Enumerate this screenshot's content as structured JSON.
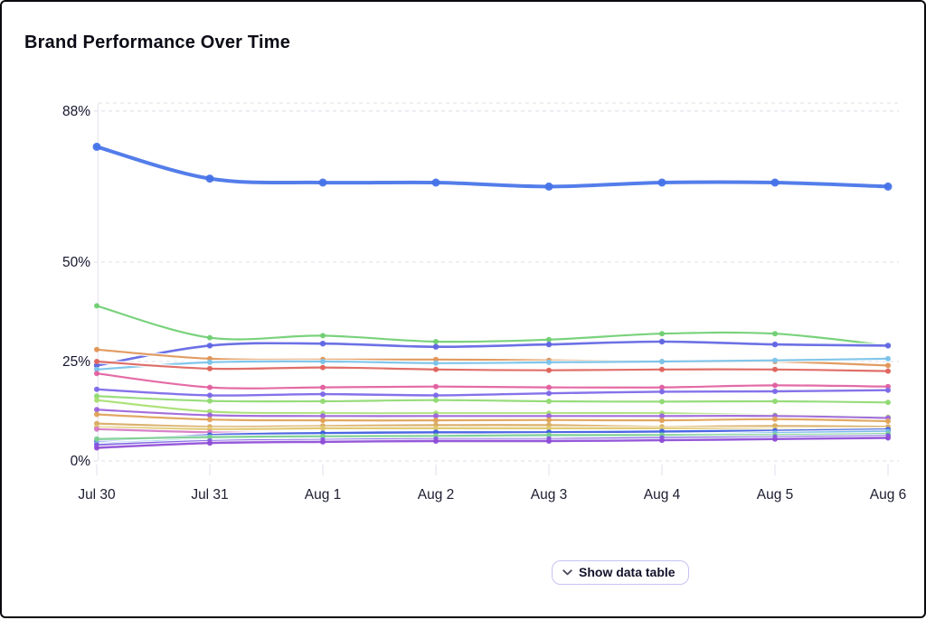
{
  "page": {
    "title": "Brand Performance Over Time"
  },
  "controls": {
    "show_data_table": {
      "label": "Show data table",
      "icon": "chevron-down-icon"
    }
  },
  "colors": {
    "grid": "#e5e4ee",
    "axis": "#ebe9f2",
    "tick_text": "#16162e",
    "accent_blue": "#4673e8",
    "button_border": "#c6c2f4"
  },
  "chart_data": {
    "type": "line",
    "title": "Brand Performance Over Time",
    "unit": "%",
    "grid": "horizontal-dashed",
    "legend": "none",
    "x_labels": [
      "Jul 30",
      "Jul 31",
      "Aug 1",
      "Aug 2",
      "Aug 3",
      "Aug 4",
      "Aug 5",
      "Aug 6"
    ],
    "y_ticks": [
      {
        "label": "88%",
        "value": 88
      },
      {
        "label": "50%",
        "value": 50
      },
      {
        "label": "25%",
        "value": 25
      },
      {
        "label": "0%",
        "value": 0
      }
    ],
    "ylim": [
      0,
      90
    ],
    "series": [
      {
        "color": "#4673e8",
        "width": 4,
        "dot": 4.5,
        "values": [
          79,
          71,
          70,
          70,
          69,
          70,
          70,
          69
        ]
      },
      {
        "color": "#6fcf72",
        "width": 2.2,
        "dot": 3,
        "values": [
          39,
          31,
          31.5,
          30,
          30.5,
          32,
          32,
          29
        ]
      },
      {
        "color": "#6166e3",
        "width": 2.6,
        "dot": 3.2,
        "values": [
          24,
          29,
          29.5,
          28.7,
          29.3,
          30,
          29.3,
          29
        ]
      },
      {
        "color": "#df9556",
        "width": 2.2,
        "dot": 3,
        "values": [
          28,
          25.7,
          25.5,
          25.5,
          25.3,
          25,
          25,
          24
        ]
      },
      {
        "color": "#79c2ea",
        "width": 2.2,
        "dot": 3,
        "values": [
          23,
          24.8,
          25,
          24.6,
          24.8,
          25,
          25.3,
          25.7
        ]
      },
      {
        "color": "#de635c",
        "width": 2.2,
        "dot": 3,
        "values": [
          25,
          23.2,
          23.5,
          23,
          22.8,
          23,
          23,
          22.6
        ]
      },
      {
        "color": "#e2609f",
        "width": 2.2,
        "dot": 3,
        "values": [
          22,
          18.5,
          18.5,
          18.7,
          18.5,
          18.5,
          19,
          18.7
        ]
      },
      {
        "color": "#7b68e8",
        "width": 2.4,
        "dot": 3,
        "values": [
          18,
          16.5,
          16.8,
          16.5,
          17,
          17.4,
          17.5,
          17.8
        ]
      },
      {
        "color": "#90d973",
        "width": 2.2,
        "dot": 3,
        "values": [
          16.3,
          15.1,
          15,
          15.3,
          15,
          14.9,
          15,
          14.7
        ]
      },
      {
        "color": "#a8df72",
        "width": 2.2,
        "dot": 3,
        "values": [
          15.3,
          12.4,
          12,
          12,
          12,
          12,
          11.5,
          11
        ]
      },
      {
        "color": "#9c64d9",
        "width": 2.2,
        "dot": 3,
        "values": [
          12.9,
          11.5,
          11.3,
          11.3,
          11.3,
          11.3,
          11.3,
          10.8
        ]
      },
      {
        "color": "#dfa258",
        "width": 2.2,
        "dot": 3,
        "values": [
          11.7,
          10.4,
          10.2,
          10.2,
          10.3,
          10.2,
          10.5,
          10
        ]
      },
      {
        "color": "#d8ab62",
        "width": 2.2,
        "dot": 3,
        "values": [
          9.4,
          8.6,
          8.8,
          9,
          9,
          8.6,
          8.8,
          8.6
        ]
      },
      {
        "color": "#dec66c",
        "width": 2.2,
        "dot": 3,
        "values": [
          8.5,
          8,
          8.2,
          8.2,
          8.2,
          8.2,
          8,
          8
        ]
      },
      {
        "color": "#d678c4",
        "width": 2.2,
        "dot": 3,
        "values": [
          8,
          7.2,
          7,
          7,
          7,
          7,
          7.2,
          7.5
        ]
      },
      {
        "color": "#3d5ce0",
        "width": 2.4,
        "dot": 3,
        "values": [
          5,
          6.5,
          7,
          7.2,
          7.2,
          7.4,
          7.6,
          7.9
        ]
      },
      {
        "color": "#72b7e8",
        "width": 2.2,
        "dot": 3,
        "values": [
          4.3,
          5.5,
          6,
          6,
          6.2,
          6.5,
          7,
          7.4
        ]
      },
      {
        "color": "#79cf8e",
        "width": 2.2,
        "dot": 3,
        "values": [
          5.5,
          6,
          6.2,
          6.3,
          6.5,
          6.5,
          6.5,
          6.8
        ]
      },
      {
        "color": "#7a55e0",
        "width": 2.2,
        "dot": 3,
        "values": [
          4,
          5,
          5.3,
          5.5,
          5.5,
          5.8,
          6,
          6.3
        ]
      },
      {
        "color": "#8e4cd6",
        "width": 2.4,
        "dot": 3,
        "values": [
          3.3,
          4.5,
          4.8,
          5,
          5,
          5.2,
          5.5,
          5.8
        ]
      }
    ]
  }
}
